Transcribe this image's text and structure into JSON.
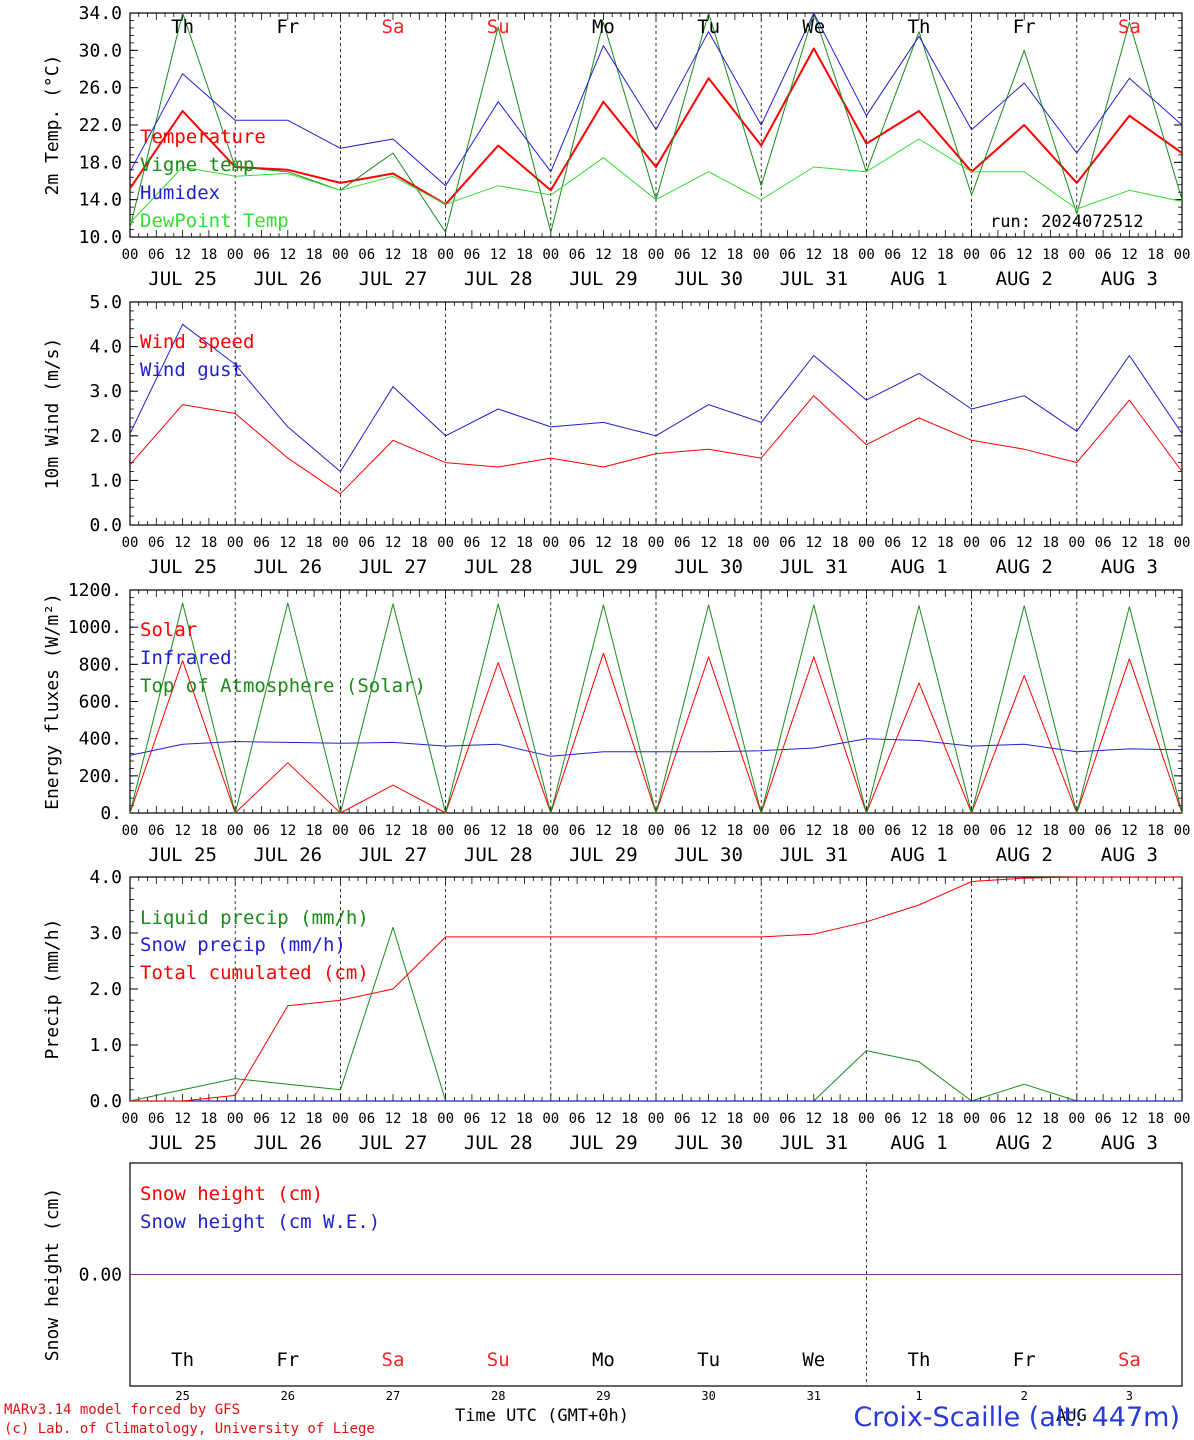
{
  "chart_data": [
    {
      "type": "line",
      "ylabel": "2m Temp. (°C)",
      "ylim": [
        10,
        34
      ],
      "yticks": [
        "10.0",
        "14.0",
        "18.0",
        "22.0",
        "26.0",
        "30.0",
        "34.0"
      ],
      "annotation": "run: 2024072512",
      "x_start": "2024-07-25 00 UTC",
      "x_step_hours": 12,
      "series": [
        {
          "name": "Temperature",
          "color": "#ff0000",
          "width": 2,
          "values": [
            15.2,
            23.5,
            17.5,
            17.2,
            15.8,
            16.8,
            13.5,
            19.8,
            15.0,
            24.5,
            17.5,
            27.0,
            19.8,
            30.2,
            20.0,
            23.5,
            17.0,
            22.0,
            15.8,
            23.0,
            19.0
          ]
        },
        {
          "name": "Vigne temp",
          "color": "#1a8a1a",
          "width": 1,
          "values": [
            11.0,
            34.0,
            17.5,
            17.0,
            15.0,
            19.0,
            10.5,
            32.5,
            10.5,
            33.0,
            14.0,
            34.0,
            15.5,
            34.0,
            17.0,
            32.0,
            14.5,
            30.0,
            12.5,
            33.0,
            14.0
          ]
        },
        {
          "name": "Humidex",
          "color": "#2020d0",
          "width": 1,
          "values": [
            17.0,
            27.5,
            22.5,
            22.5,
            19.5,
            20.5,
            15.5,
            24.5,
            17.0,
            30.5,
            21.5,
            32.0,
            22.0,
            34.0,
            23.0,
            31.5,
            21.5,
            26.5,
            19.0,
            27.0,
            22.0
          ]
        },
        {
          "name": "DewPoint Temp",
          "color": "#33dd33",
          "width": 1,
          "values": [
            11.5,
            17.5,
            16.5,
            16.8,
            15.0,
            16.5,
            13.5,
            15.5,
            14.5,
            18.5,
            14.0,
            17.0,
            14.0,
            17.5,
            17.0,
            20.5,
            17.0,
            17.0,
            13.0,
            15.0,
            13.8
          ]
        }
      ]
    },
    {
      "type": "line",
      "ylabel": "10m Wind (m/s)",
      "ylim": [
        0,
        5
      ],
      "yticks": [
        "0.0",
        "1.0",
        "2.0",
        "3.0",
        "4.0",
        "5.0"
      ],
      "x_start": "2024-07-25 00 UTC",
      "x_step_hours": 12,
      "series": [
        {
          "name": "Wind speed",
          "color": "#ff0000",
          "width": 1,
          "values": [
            1.35,
            2.7,
            2.5,
            1.5,
            0.7,
            1.9,
            1.4,
            1.3,
            1.5,
            1.3,
            1.6,
            1.7,
            1.5,
            2.9,
            1.8,
            2.4,
            1.9,
            1.7,
            1.4,
            2.8,
            1.2
          ]
        },
        {
          "name": "Wind gust",
          "color": "#2020d0",
          "width": 1,
          "values": [
            2.05,
            4.5,
            3.6,
            2.2,
            1.2,
            3.1,
            2.0,
            2.6,
            2.2,
            2.3,
            2.0,
            2.7,
            2.3,
            3.8,
            2.8,
            3.4,
            2.6,
            2.9,
            2.1,
            3.8,
            2.05
          ]
        }
      ]
    },
    {
      "type": "line",
      "ylabel": "Energy fluxes (W/m²)",
      "ylim": [
        0,
        1200
      ],
      "yticks": [
        "0.",
        "200.",
        "400.",
        "600.",
        "800.",
        "1000.",
        "1200."
      ],
      "x_start": "2024-07-25 00 UTC",
      "x_step_hours": 12,
      "series": [
        {
          "name": "Solar",
          "color": "#ff0000",
          "width": 1,
          "values": [
            0,
            820,
            0,
            270,
            0,
            150,
            0,
            810,
            0,
            860,
            0,
            840,
            0,
            840,
            0,
            700,
            0,
            740,
            0,
            830,
            0
          ]
        },
        {
          "name": "Infrared",
          "color": "#2020d0",
          "width": 1,
          "values": [
            310,
            370,
            385,
            380,
            375,
            380,
            360,
            370,
            305,
            330,
            330,
            330,
            335,
            350,
            400,
            390,
            360,
            370,
            330,
            345,
            340
          ]
        },
        {
          "name": "Top of Atmosphere (Solar)",
          "color": "#1a8a1a",
          "width": 1,
          "values": [
            0,
            1130,
            0,
            1130,
            0,
            1125,
            0,
            1125,
            0,
            1120,
            0,
            1120,
            0,
            1120,
            0,
            1115,
            0,
            1115,
            0,
            1110,
            0
          ]
        }
      ]
    },
    {
      "type": "line",
      "ylabel": "Precip (mm/h)",
      "ylim": [
        0,
        4
      ],
      "yticks": [
        "0.0",
        "1.0",
        "2.0",
        "3.0",
        "4.0"
      ],
      "x_start": "2024-07-25 00 UTC",
      "x_step_hours": 12,
      "series": [
        {
          "name": "Liquid precip (mm/h)",
          "color": "#1a8a1a",
          "width": 1,
          "values": [
            0,
            0.2,
            0.4,
            0.3,
            0.2,
            3.1,
            0,
            0,
            0,
            0,
            0,
            0,
            0,
            0,
            0.9,
            0.7,
            0,
            0.3,
            0,
            0,
            0
          ]
        },
        {
          "name": "Snow precip (mm/h)",
          "color": "#2020d0",
          "width": 1,
          "values": [
            0,
            0,
            0,
            0,
            0,
            0,
            0,
            0,
            0,
            0,
            0,
            0,
            0,
            0,
            0,
            0,
            0,
            0,
            0,
            0,
            0
          ]
        },
        {
          "name": "Total cumulated (cm)",
          "color": "#ff0000",
          "width": 1,
          "values": [
            0,
            0,
            0.1,
            1.7,
            1.8,
            2.0,
            2.93,
            2.93,
            2.93,
            2.93,
            2.93,
            2.93,
            2.93,
            2.98,
            3.2,
            3.5,
            3.92,
            3.98,
            4.0,
            4.0,
            4.0
          ]
        }
      ]
    },
    {
      "type": "line",
      "ylabel": "Snow height (cm)",
      "yticks": [
        "0.00"
      ],
      "x_start": "2024-07-25 00 UTC",
      "x_step_hours": 12,
      "series": [
        {
          "name": "Snow height (cm)",
          "color": "#ff0000",
          "width": 1,
          "values": [
            0,
            0,
            0,
            0,
            0,
            0,
            0,
            0,
            0,
            0,
            0,
            0,
            0,
            0,
            0,
            0,
            0,
            0,
            0,
            0,
            0
          ]
        },
        {
          "name": "Snow height (cm W.E.)",
          "color": "#2020d0",
          "width": 1,
          "values": [
            0,
            0,
            0,
            0,
            0,
            0,
            0,
            0,
            0,
            0,
            0,
            0,
            0,
            0,
            0,
            0,
            0,
            0,
            0,
            0,
            0
          ]
        }
      ]
    }
  ],
  "days": [
    {
      "weekday": "Th",
      "date": "JUL 25",
      "num": "25",
      "weekend": false
    },
    {
      "weekday": "Fr",
      "date": "JUL 26",
      "num": "26",
      "weekend": false
    },
    {
      "weekday": "Sa",
      "date": "JUL 27",
      "num": "27",
      "weekend": true
    },
    {
      "weekday": "Su",
      "date": "JUL 28",
      "num": "28",
      "weekend": true
    },
    {
      "weekday": "Mo",
      "date": "JUL 29",
      "num": "29",
      "weekend": false
    },
    {
      "weekday": "Tu",
      "date": "JUL 30",
      "num": "30",
      "weekend": false
    },
    {
      "weekday": "We",
      "date": "JUL 31",
      "num": "31",
      "weekend": false
    },
    {
      "weekday": "Th",
      "date": "AUG  1",
      "num": "1",
      "weekend": false
    },
    {
      "weekday": "Fr",
      "date": "AUG  2",
      "num": "2",
      "weekend": false
    },
    {
      "weekday": "Sa",
      "date": "AUG  3",
      "num": "3",
      "weekend": true
    }
  ],
  "hour_ticks": [
    "00",
    "06",
    "12",
    "18"
  ],
  "colors": {
    "weekday_text": "#000000",
    "weekend_text": "#ff2020"
  },
  "footer": {
    "credit_line1": "MARv3.14 model forced by GFS",
    "credit_line2": "(c) Lab. of Climatology, University of Liege",
    "xaxis_label": "Time UTC (GMT+0h)",
    "aug_label": "AUG",
    "station": "Croix-Scaille (alt: 447m)"
  }
}
